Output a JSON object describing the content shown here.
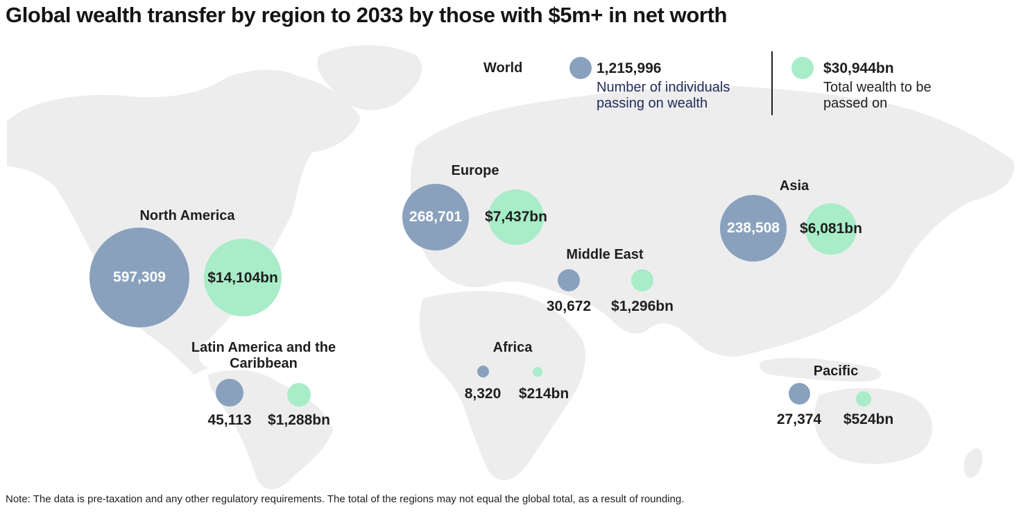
{
  "title": "Global wealth transfer by region to 2033 by those with $5m+ in net worth",
  "legend": {
    "world_label": "World",
    "individuals_value": "1,215,996",
    "individuals_desc": "Number of individuals passing on wealth",
    "wealth_value": "$30,944bn",
    "wealth_desc": "Total wealth to be passed on"
  },
  "colors": {
    "individuals": "#8aa1bd",
    "wealth": "#a8ecc8",
    "map": "#ededee"
  },
  "regions": {
    "north_america": {
      "name": "North America",
      "individuals": "597,309",
      "wealth": "$14,104bn"
    },
    "europe": {
      "name": "Europe",
      "individuals": "268,701",
      "wealth": "$7,437bn"
    },
    "asia": {
      "name": "Asia",
      "individuals": "238,508",
      "wealth": "$6,081bn"
    },
    "middle_east": {
      "name": "Middle East",
      "individuals": "30,672",
      "wealth": "$1,296bn"
    },
    "latin_america": {
      "name": "Latin America and the Caribbean",
      "individuals": "45,113",
      "wealth": "$1,288bn"
    },
    "africa": {
      "name": "Africa",
      "individuals": "8,320",
      "wealth": "$214bn"
    },
    "pacific": {
      "name": "Pacific",
      "individuals": "27,374",
      "wealth": "$524bn"
    }
  },
  "note": "Note: The data is pre-taxation and any other regulatory requirements. The total of the regions may not equal the global total, as a result of rounding."
}
